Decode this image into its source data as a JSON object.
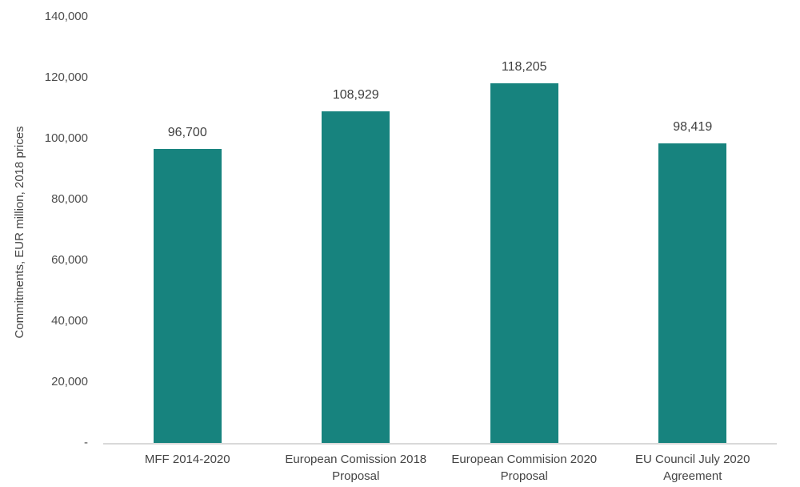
{
  "chart_data": {
    "type": "bar",
    "title": "",
    "xlabel": "",
    "ylabel": "Commitments, EUR million, 2018 prices",
    "ylim": [
      0,
      140000
    ],
    "grid": false,
    "legend_position": "none",
    "bar_color": "#17837e",
    "axis_line_color": "#d9d9d9",
    "text_color": "#444444",
    "categories": [
      "MFF 2014-2020",
      "European Comission 2018 Proposal",
      "European Commision 2020 Proposal",
      "EU Council July 2020 Agreement"
    ],
    "category_lines": [
      [
        "MFF 2014-2020"
      ],
      [
        "European Comission 2018",
        "Proposal"
      ],
      [
        "European Commision 2020",
        "Proposal"
      ],
      [
        "EU Council July 2020",
        "Agreement"
      ]
    ],
    "values": [
      96700,
      108929,
      118205,
      98419
    ],
    "value_labels": [
      "96,700",
      "108,929",
      "118,205",
      "98,419"
    ],
    "yticks": [
      0,
      20000,
      40000,
      60000,
      80000,
      100000,
      120000,
      140000
    ],
    "ytick_labels": [
      "-",
      "20,000",
      "40,000",
      "60,000",
      "80,000",
      "100,000",
      "120,000",
      "140,000"
    ]
  }
}
